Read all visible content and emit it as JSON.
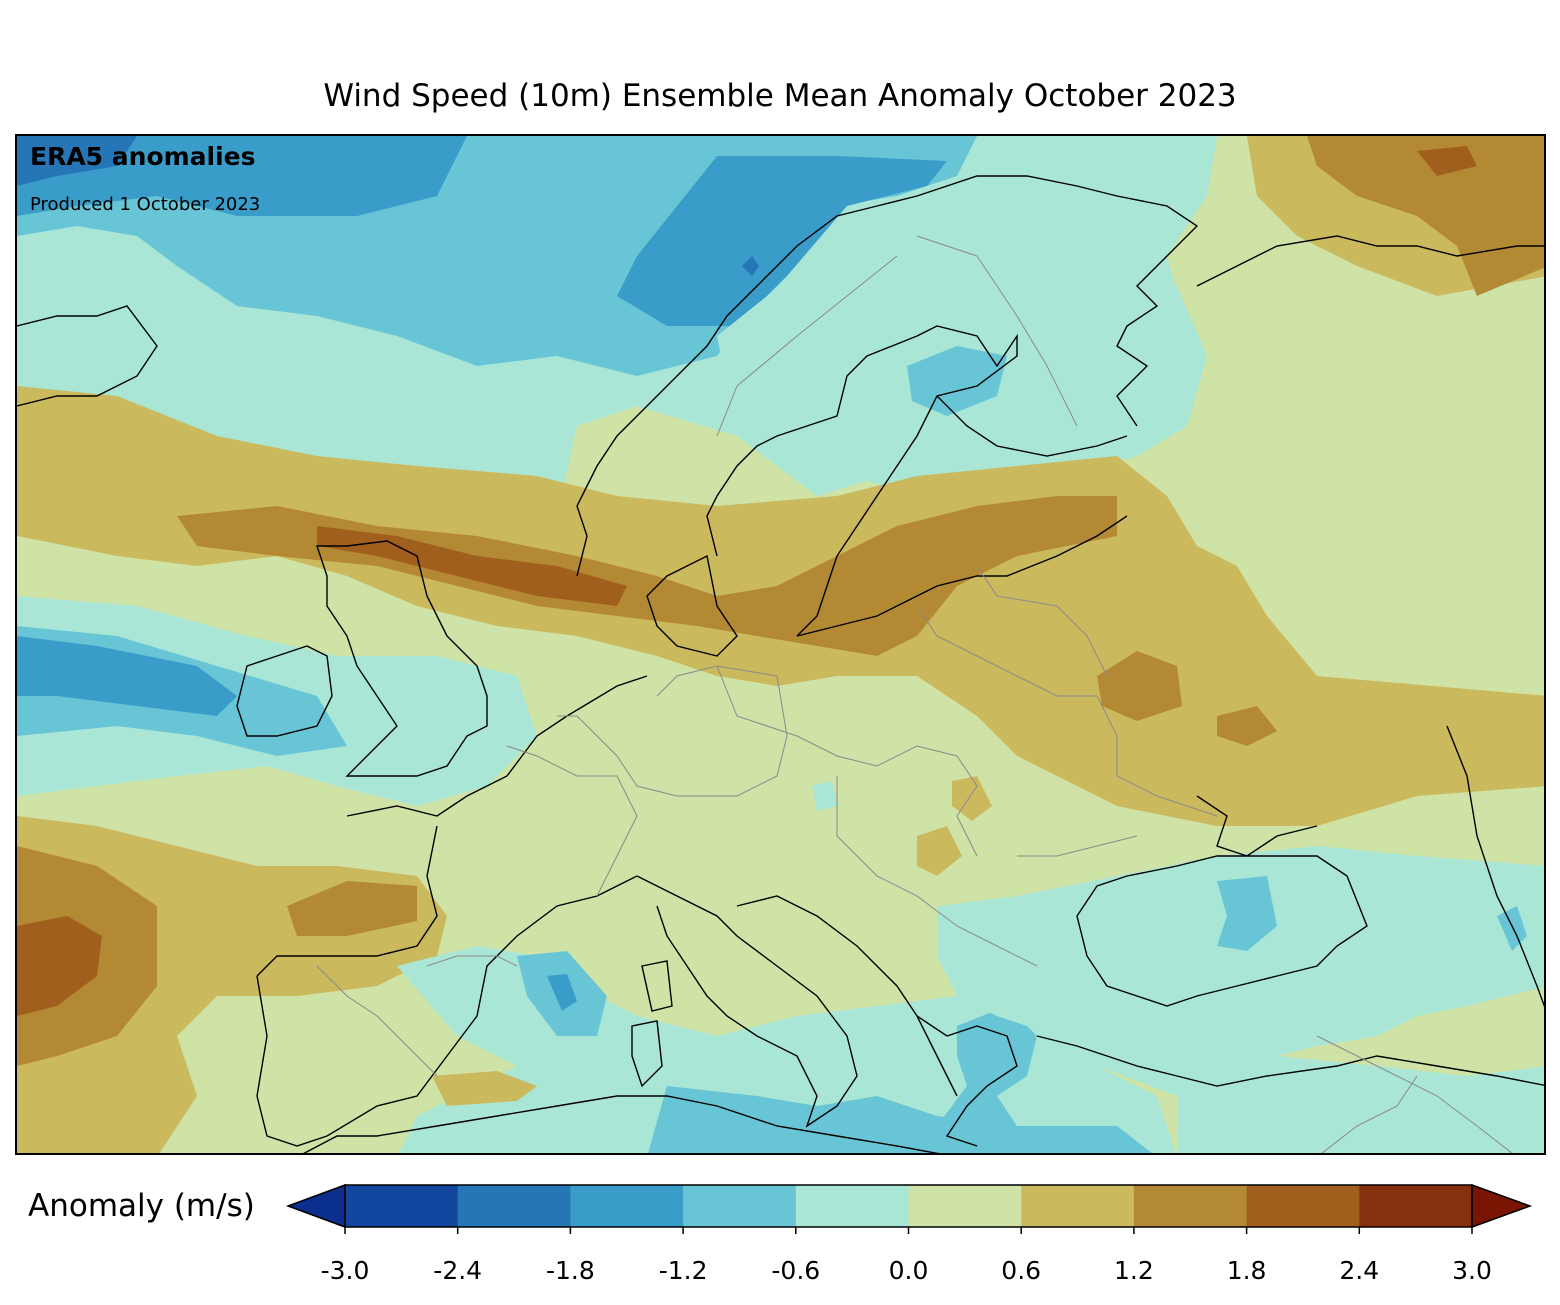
{
  "title": "Wind Speed (10m) Ensemble Mean Anomaly October 2023",
  "overlay": {
    "heading": "ERA5 anomalies",
    "produced": "Produced 1 October 2023"
  },
  "colorbar": {
    "label": "Anomaly (m/s)",
    "ticks": [
      "-3.0",
      "-2.4",
      "-1.8",
      "-1.2",
      "-0.6",
      "0.0",
      "0.6",
      "1.2",
      "1.8",
      "2.4",
      "3.0"
    ],
    "levels": [
      -3.0,
      -2.4,
      -1.8,
      -1.2,
      -0.6,
      0.0,
      0.6,
      1.2,
      1.8,
      2.4,
      3.0
    ],
    "colors": [
      "#13479f",
      "#2575b7",
      "#3a9dc9",
      "#67c5d6",
      "#a9e6d6",
      "#cfe3a6",
      "#cbb95e",
      "#b38a33",
      "#a05f1d",
      "#86310e"
    ],
    "under_color": "#0a2f8f",
    "over_color": "#7b1503",
    "extend": "both"
  },
  "map": {
    "region": "Europe",
    "variable": "10m wind speed anomaly",
    "units": "m/s"
  }
}
